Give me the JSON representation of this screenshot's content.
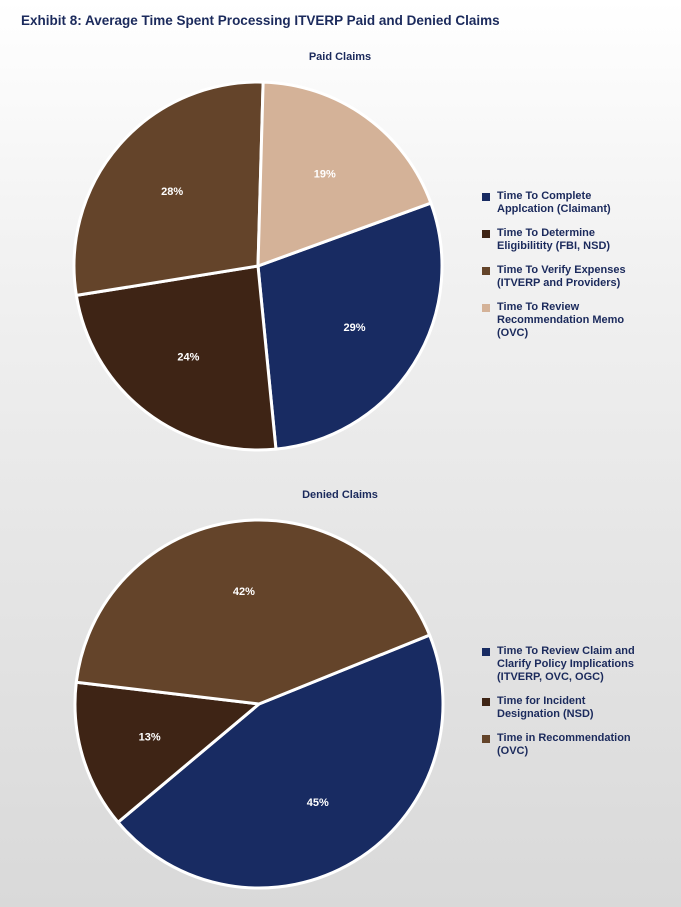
{
  "exhibit_title": "Exhibit 8: Average Time Spent Processing ITVERP Paid and Denied Claims",
  "chart_data": [
    {
      "type": "pie",
      "title": "Paid Claims",
      "categories": [
        "Time To Complete Applcation (Claimant)",
        "Time To Determine Eligibilitity (FBI, NSD)",
        "Time To Verify Expenses (ITVERP and Providers)",
        "Time To Review Recommendation Memo (OVC)"
      ],
      "legend_labels": [
        "Time To Complete\nApplcation (Claimant)",
        "Time To Determine\nEligibilitity (FBI, NSD)",
        "Time To Verify Expenses\n(ITVERP and Providers)",
        "Time To Review\nRecommendation Memo\n(OVC)"
      ],
      "values": [
        29,
        24,
        28,
        19
      ],
      "data_labels": [
        "29%",
        "24%",
        "28%",
        "19%"
      ],
      "colors": [
        "#182b62",
        "#3e2415",
        "#64442a",
        "#d4b298"
      ],
      "legend_position": "right"
    },
    {
      "type": "pie",
      "title": "Denied Claims",
      "categories": [
        "Time To Review Claim and Clarify Policy Implications (ITVERP, OVC, OGC)",
        "Time for Incident Designation (NSD)",
        "Time in Recommendation (OVC)"
      ],
      "legend_labels": [
        "Time To Review Claim and\nClarify Policy Implications\n(ITVERP, OVC, OGC)",
        "Time for Incident\nDesignation (NSD)",
        "Time in Recommendation\n(OVC)"
      ],
      "values": [
        45,
        13,
        42
      ],
      "data_labels": [
        "45%",
        "13%",
        "42%"
      ],
      "colors": [
        "#182b62",
        "#3e2415",
        "#64442a"
      ],
      "legend_position": "right"
    }
  ]
}
